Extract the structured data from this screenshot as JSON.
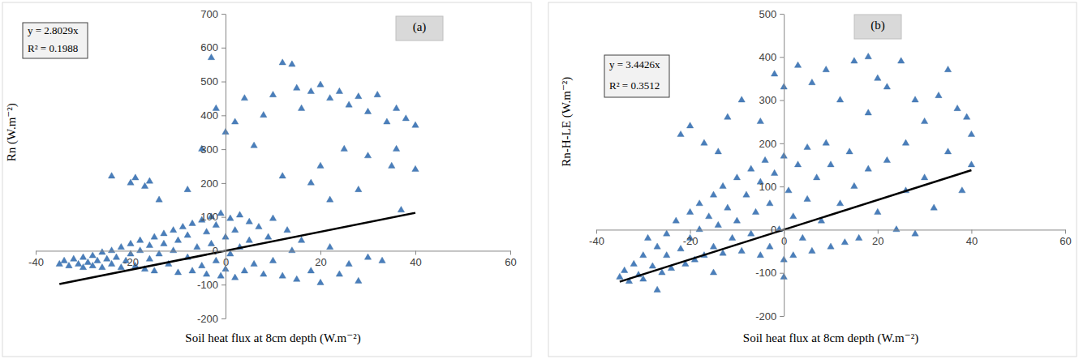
{
  "chart_data": [
    {
      "type": "scatter",
      "title": "(a)",
      "annotations": [
        "y = 2.8029x",
        "R² = 0.1988"
      ],
      "x_label": "Soil heat flux at 8cm depth (W.m⁻²)",
      "y_label": "Rn (W.m⁻²)",
      "xlim": [
        -40,
        60
      ],
      "ylim": [
        -200,
        700
      ],
      "xticks": [
        -40,
        -20,
        0,
        20,
        40,
        60
      ],
      "yticks": [
        -200,
        -100,
        0,
        100,
        200,
        300,
        400,
        500,
        600,
        700
      ],
      "grid": false,
      "series": [
        {
          "type": "scatter",
          "color": "#4a7ebb",
          "marker": "triangle",
          "x": [
            -35,
            -34,
            -33,
            -32,
            -31,
            -30,
            -30,
            -29,
            -28,
            -28,
            -27,
            -26,
            -26,
            -25,
            -24,
            -24,
            -23,
            -22,
            -22,
            -21,
            -20,
            -20,
            -19,
            -18,
            -18,
            -17,
            -16,
            -16,
            -15,
            -15,
            -14,
            -13,
            -13,
            -12,
            -11,
            -11,
            -10,
            -10,
            -9,
            -8,
            -8,
            -7,
            -7,
            -6,
            -5,
            -5,
            -4,
            -4,
            -3,
            -3,
            -2,
            -2,
            -1,
            -1,
            0,
            0,
            1,
            1,
            2,
            2,
            3,
            3,
            4,
            5,
            5,
            6,
            7,
            8,
            9,
            10,
            10,
            12,
            13,
            14,
            15,
            16,
            18,
            20,
            22,
            24,
            26,
            28,
            30,
            -20,
            -19,
            -17,
            -16,
            -24,
            -14,
            -8,
            -5,
            -3,
            -2,
            0,
            2,
            4,
            6,
            8,
            10,
            12,
            14,
            15,
            16,
            18,
            20,
            22,
            24,
            26,
            28,
            30,
            32,
            34,
            36,
            38,
            40,
            25,
            30,
            35,
            20,
            18,
            12,
            22,
            28,
            36,
            33,
            37,
            40
          ],
          "values": [
            -40,
            -30,
            -45,
            -25,
            -40,
            -20,
            -50,
            -35,
            -15,
            -45,
            -30,
            -5,
            -50,
            -25,
            0,
            -40,
            -20,
            10,
            -50,
            -30,
            20,
            -10,
            -45,
            30,
            0,
            -55,
            15,
            -25,
            40,
            -60,
            -10,
            50,
            20,
            -40,
            60,
            0,
            -65,
            30,
            70,
            -20,
            45,
            80,
            -60,
            10,
            90,
            -45,
            55,
            -70,
            100,
            20,
            -30,
            75,
            110,
            -75,
            40,
            -55,
            95,
            -10,
            60,
            -80,
            105,
            10,
            -60,
            85,
            30,
            -40,
            70,
            -70,
            40,
            95,
            -30,
            -75,
            60,
            0,
            -85,
            30,
            -60,
            -95,
            10,
            -70,
            -40,
            -90,
            -20,
            200,
            215,
            190,
            205,
            220,
            150,
            180,
            300,
            570,
            420,
            350,
            380,
            450,
            310,
            400,
            460,
            555,
            550,
            480,
            420,
            470,
            490,
            450,
            470,
            430,
            455,
            410,
            460,
            380,
            420,
            390,
            370,
            300,
            280,
            250,
            250,
            200,
            220,
            150,
            180,
            300,
            -30,
            120,
            240
          ]
        },
        {
          "type": "line",
          "color": "#000000",
          "line_style": "solid",
          "x": [
            -35,
            40
          ],
          "values": [
            -98.1,
            112.1
          ]
        }
      ]
    },
    {
      "type": "scatter",
      "title": "(b)",
      "annotations": [
        "y = 3.4426x",
        "R² = 0.3512"
      ],
      "x_label": "Soil heat flux at 8cm depth (W.m⁻²)",
      "y_label": "Rn-H-LE (W.m⁻²)",
      "xlim": [
        -40,
        60
      ],
      "ylim": [
        -200,
        500
      ],
      "xticks": [
        -40,
        -20,
        0,
        20,
        40,
        60
      ],
      "yticks": [
        -200,
        -100,
        0,
        100,
        200,
        300,
        400,
        500
      ],
      "grid": false,
      "series": [
        {
          "type": "scatter",
          "color": "#4a7ebb",
          "marker": "triangle",
          "x": [
            -35,
            -34,
            -33,
            -32,
            -31,
            -30,
            -30,
            -29,
            -28,
            -27,
            -26,
            -25,
            -25,
            -24,
            -23,
            -22,
            -21,
            -20,
            -20,
            -19,
            -18,
            -18,
            -17,
            -16,
            -15,
            -15,
            -14,
            -13,
            -13,
            -12,
            -11,
            -10,
            -10,
            -9,
            -8,
            -7,
            -7,
            -6,
            -5,
            -5,
            -4,
            -3,
            -3,
            -2,
            -1,
            0,
            0,
            1,
            2,
            2,
            3,
            4,
            5,
            5,
            6,
            7,
            8,
            9,
            10,
            10,
            12,
            13,
            14,
            15,
            16,
            18,
            20,
            22,
            24,
            26,
            28,
            30,
            32,
            35,
            38,
            40,
            -22,
            -20,
            -17,
            -12,
            -9,
            -5,
            -2,
            0,
            3,
            6,
            9,
            12,
            15,
            18,
            20,
            22,
            25,
            28,
            30,
            33,
            35,
            37,
            39,
            40,
            26,
            18,
            -14,
            -27,
            -15,
            0
          ],
          "values": [
            -110,
            -95,
            -120,
            -80,
            -105,
            -60,
            -115,
            -20,
            -85,
            -40,
            -100,
            -10,
            -60,
            -90,
            20,
            -45,
            -80,
            40,
            -20,
            -70,
            60,
            0,
            -60,
            30,
            80,
            -40,
            10,
            100,
            -55,
            50,
            -20,
            120,
            20,
            -50,
            80,
            140,
            -10,
            40,
            -60,
            110,
            160,
            60,
            -40,
            130,
            0,
            170,
            -70,
            90,
            30,
            -60,
            150,
            -20,
            190,
            70,
            -50,
            120,
            20,
            200,
            -40,
            150,
            60,
            -30,
            180,
            100,
            -20,
            140,
            40,
            160,
            0,
            90,
            -10,
            120,
            50,
            180,
            90,
            150,
            220,
            240,
            200,
            260,
            300,
            250,
            360,
            330,
            380,
            340,
            370,
            300,
            390,
            400,
            350,
            330,
            390,
            300,
            250,
            310,
            370,
            280,
            260,
            220,
            200,
            270,
            180,
            -140,
            -100,
            -110
          ]
        },
        {
          "type": "line",
          "color": "#000000",
          "line_style": "solid",
          "x": [
            -35,
            40
          ],
          "values": [
            -120.5,
            137.7
          ]
        }
      ]
    }
  ]
}
